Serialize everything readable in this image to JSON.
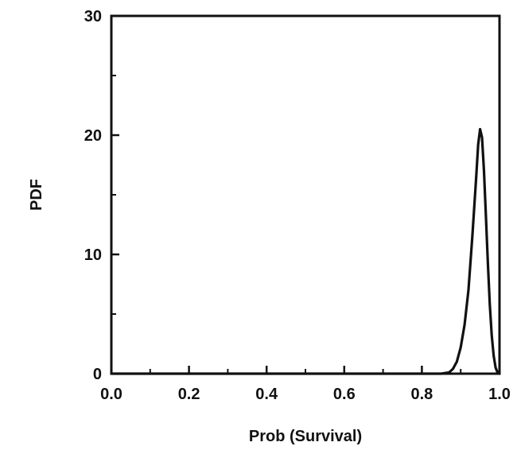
{
  "chart_data": {
    "type": "line",
    "title": "",
    "xlabel": "Prob (Survival)",
    "ylabel": "PDF",
    "xlim": [
      0.0,
      1.0
    ],
    "ylim": [
      0,
      30
    ],
    "x_ticks": [
      "0.0",
      "0.2",
      "0.4",
      "0.6",
      "0.8",
      "1.0"
    ],
    "y_ticks": [
      "0",
      "10",
      "20",
      "30"
    ],
    "grid": false,
    "legend": "none",
    "line_color": "#111111",
    "series": [
      {
        "x": [
          0.0,
          0.1,
          0.2,
          0.3,
          0.4,
          0.5,
          0.6,
          0.7,
          0.8,
          0.85,
          0.87,
          0.88,
          0.89,
          0.9,
          0.91,
          0.92,
          0.93,
          0.94,
          0.945,
          0.95,
          0.955,
          0.96,
          0.965,
          0.97,
          0.975,
          0.98,
          0.985,
          0.99,
          0.995,
          1.0
        ],
        "y": [
          0,
          0,
          0,
          0,
          0,
          0,
          0,
          0,
          0,
          0,
          0.1,
          0.4,
          1.0,
          2.2,
          4.1,
          7.0,
          11.5,
          16.5,
          19.2,
          20.5,
          19.8,
          17.0,
          13.2,
          9.3,
          5.8,
          3.2,
          1.5,
          0.5,
          0.1,
          0
        ]
      }
    ]
  }
}
